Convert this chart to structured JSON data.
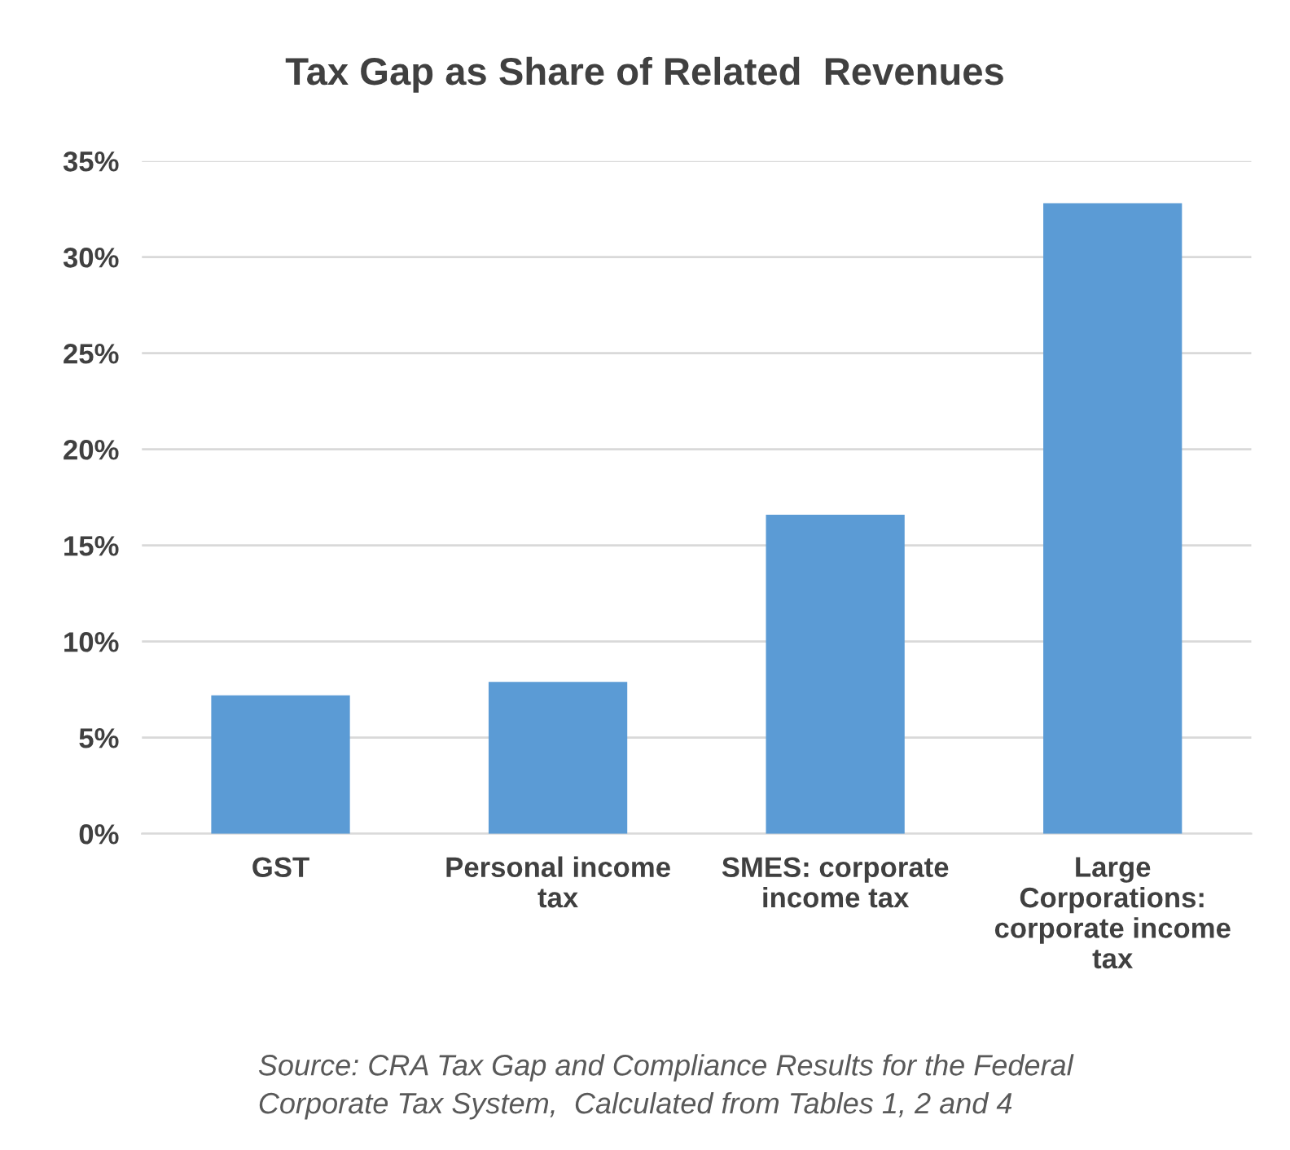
{
  "chart_data": {
    "type": "bar",
    "title": "Tax Gap as Share of Related  Revenues",
    "categories": [
      "GST",
      "Personal income\ntax",
      "SMES: corporate\nincome tax",
      "Large\nCorporations:\ncorporate income\ntax"
    ],
    "values": [
      7.2,
      7.9,
      16.6,
      32.8
    ],
    "color": "#5b9bd5",
    "ylim": [
      0,
      35
    ],
    "yticks": [
      {
        "value": 0,
        "label": "0%"
      },
      {
        "value": 5,
        "label": "5%"
      },
      {
        "value": 10,
        "label": "10%"
      },
      {
        "value": 15,
        "label": "15%"
      },
      {
        "value": 20,
        "label": "20%"
      },
      {
        "value": 25,
        "label": "25%"
      },
      {
        "value": 30,
        "label": "30%"
      },
      {
        "value": 35,
        "label": "35%"
      }
    ],
    "grid": "y",
    "annotations": [
      "Source: CRA Tax Gap and Compliance Results for the Federal\nCorporate Tax System,  Calculated from Tables 1, 2 and 4"
    ]
  }
}
